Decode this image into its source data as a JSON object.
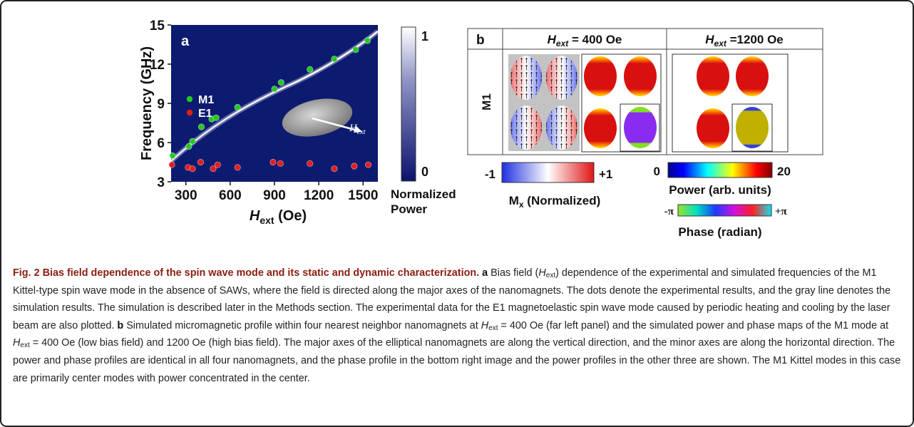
{
  "chart_data": {
    "type": "scatter",
    "panel_label": "a",
    "x_label": [
      "H",
      "ext",
      " (Oe)"
    ],
    "y_label": "Frequency (GHz)",
    "xlim": [
      200,
      1600
    ],
    "ylim": [
      3,
      15
    ],
    "xticks": [
      300,
      600,
      900,
      1200,
      1500
    ],
    "yticks": [
      3,
      6,
      9,
      12,
      15
    ],
    "inset_label": [
      "H",
      "ext"
    ],
    "series": [
      {
        "name": "M1",
        "color": "#25c725",
        "x": [
          210,
          320,
          345,
          405,
          475,
          505,
          650,
          900,
          945,
          1140,
          1305,
          1450,
          1530
        ],
        "values": [
          5.0,
          5.7,
          6.1,
          7.2,
          7.8,
          7.9,
          8.7,
          10.1,
          10.6,
          11.6,
          12.4,
          13.1,
          13.8
        ]
      },
      {
        "name": "E1",
        "color": "#e21d1d",
        "x": [
          205,
          315,
          345,
          400,
          485,
          515,
          650,
          890,
          940,
          1140,
          1305,
          1440,
          1535
        ],
        "values": [
          4.3,
          4.1,
          4.0,
          4.5,
          4.0,
          4.3,
          4.1,
          4.5,
          4.4,
          4.4,
          4.0,
          4.2,
          4.3
        ]
      }
    ],
    "colorbar": {
      "ticks": [
        1,
        0
      ],
      "label": "Normalized Power"
    }
  },
  "panel_b": {
    "label": "b",
    "columns": [
      [
        "H",
        "ext",
        " = 400 Oe"
      ],
      [
        "H",
        "ext",
        " =1200 Oe"
      ]
    ],
    "row_label": "M1",
    "mx_bar": {
      "min": "-1",
      "max": "+1",
      "label": [
        "M",
        "x",
        " (Normalized)"
      ]
    },
    "power_bar": {
      "min": "0",
      "max": "20",
      "label": "Power (arb. units)"
    },
    "phase_bar": {
      "min": "-π",
      "max": "+π",
      "label": "Phase (radian)"
    }
  },
  "caption": {
    "title": "Fig. 2 Bias field dependence of the spin wave mode and its static and dynamic characterization.",
    "a_label": "a",
    "a_text": [
      "Bias field (",
      "H",
      "ext",
      ") dependence of the experimental and simulated frequencies of the M1 Kittel-type spin wave mode in the absence of SAWs, where the field is directed along the major axes of the nanomagnets. The dots denote the experimental results, and the gray line denotes the simulation results. The simulation is described later in the Methods section. The experimental data for the E1 magnetoelastic spin wave mode caused by periodic heating and cooling by the laser beam are also plotted."
    ],
    "b_label": "b",
    "b_text": [
      "Simulated micromagnetic profile within four nearest neighbor nanomagnets at ",
      "H",
      "ext",
      " = 400 Oe (far left panel) and the simulated power and phase maps of the M1 mode at ",
      "H",
      "ext",
      " = 400 Oe (low bias field) and 1200 Oe (high bias field). The major axes of the elliptical nanomagnets are along the vertical direction, and the minor axes are along the horizontal direction. The power and phase profiles are identical in all four nanomagnets, and the phase profile in the bottom right image and the power profiles in the other three are shown. The M1 Kittel modes in this case are primarily center modes with power concentrated in the center."
    ]
  }
}
